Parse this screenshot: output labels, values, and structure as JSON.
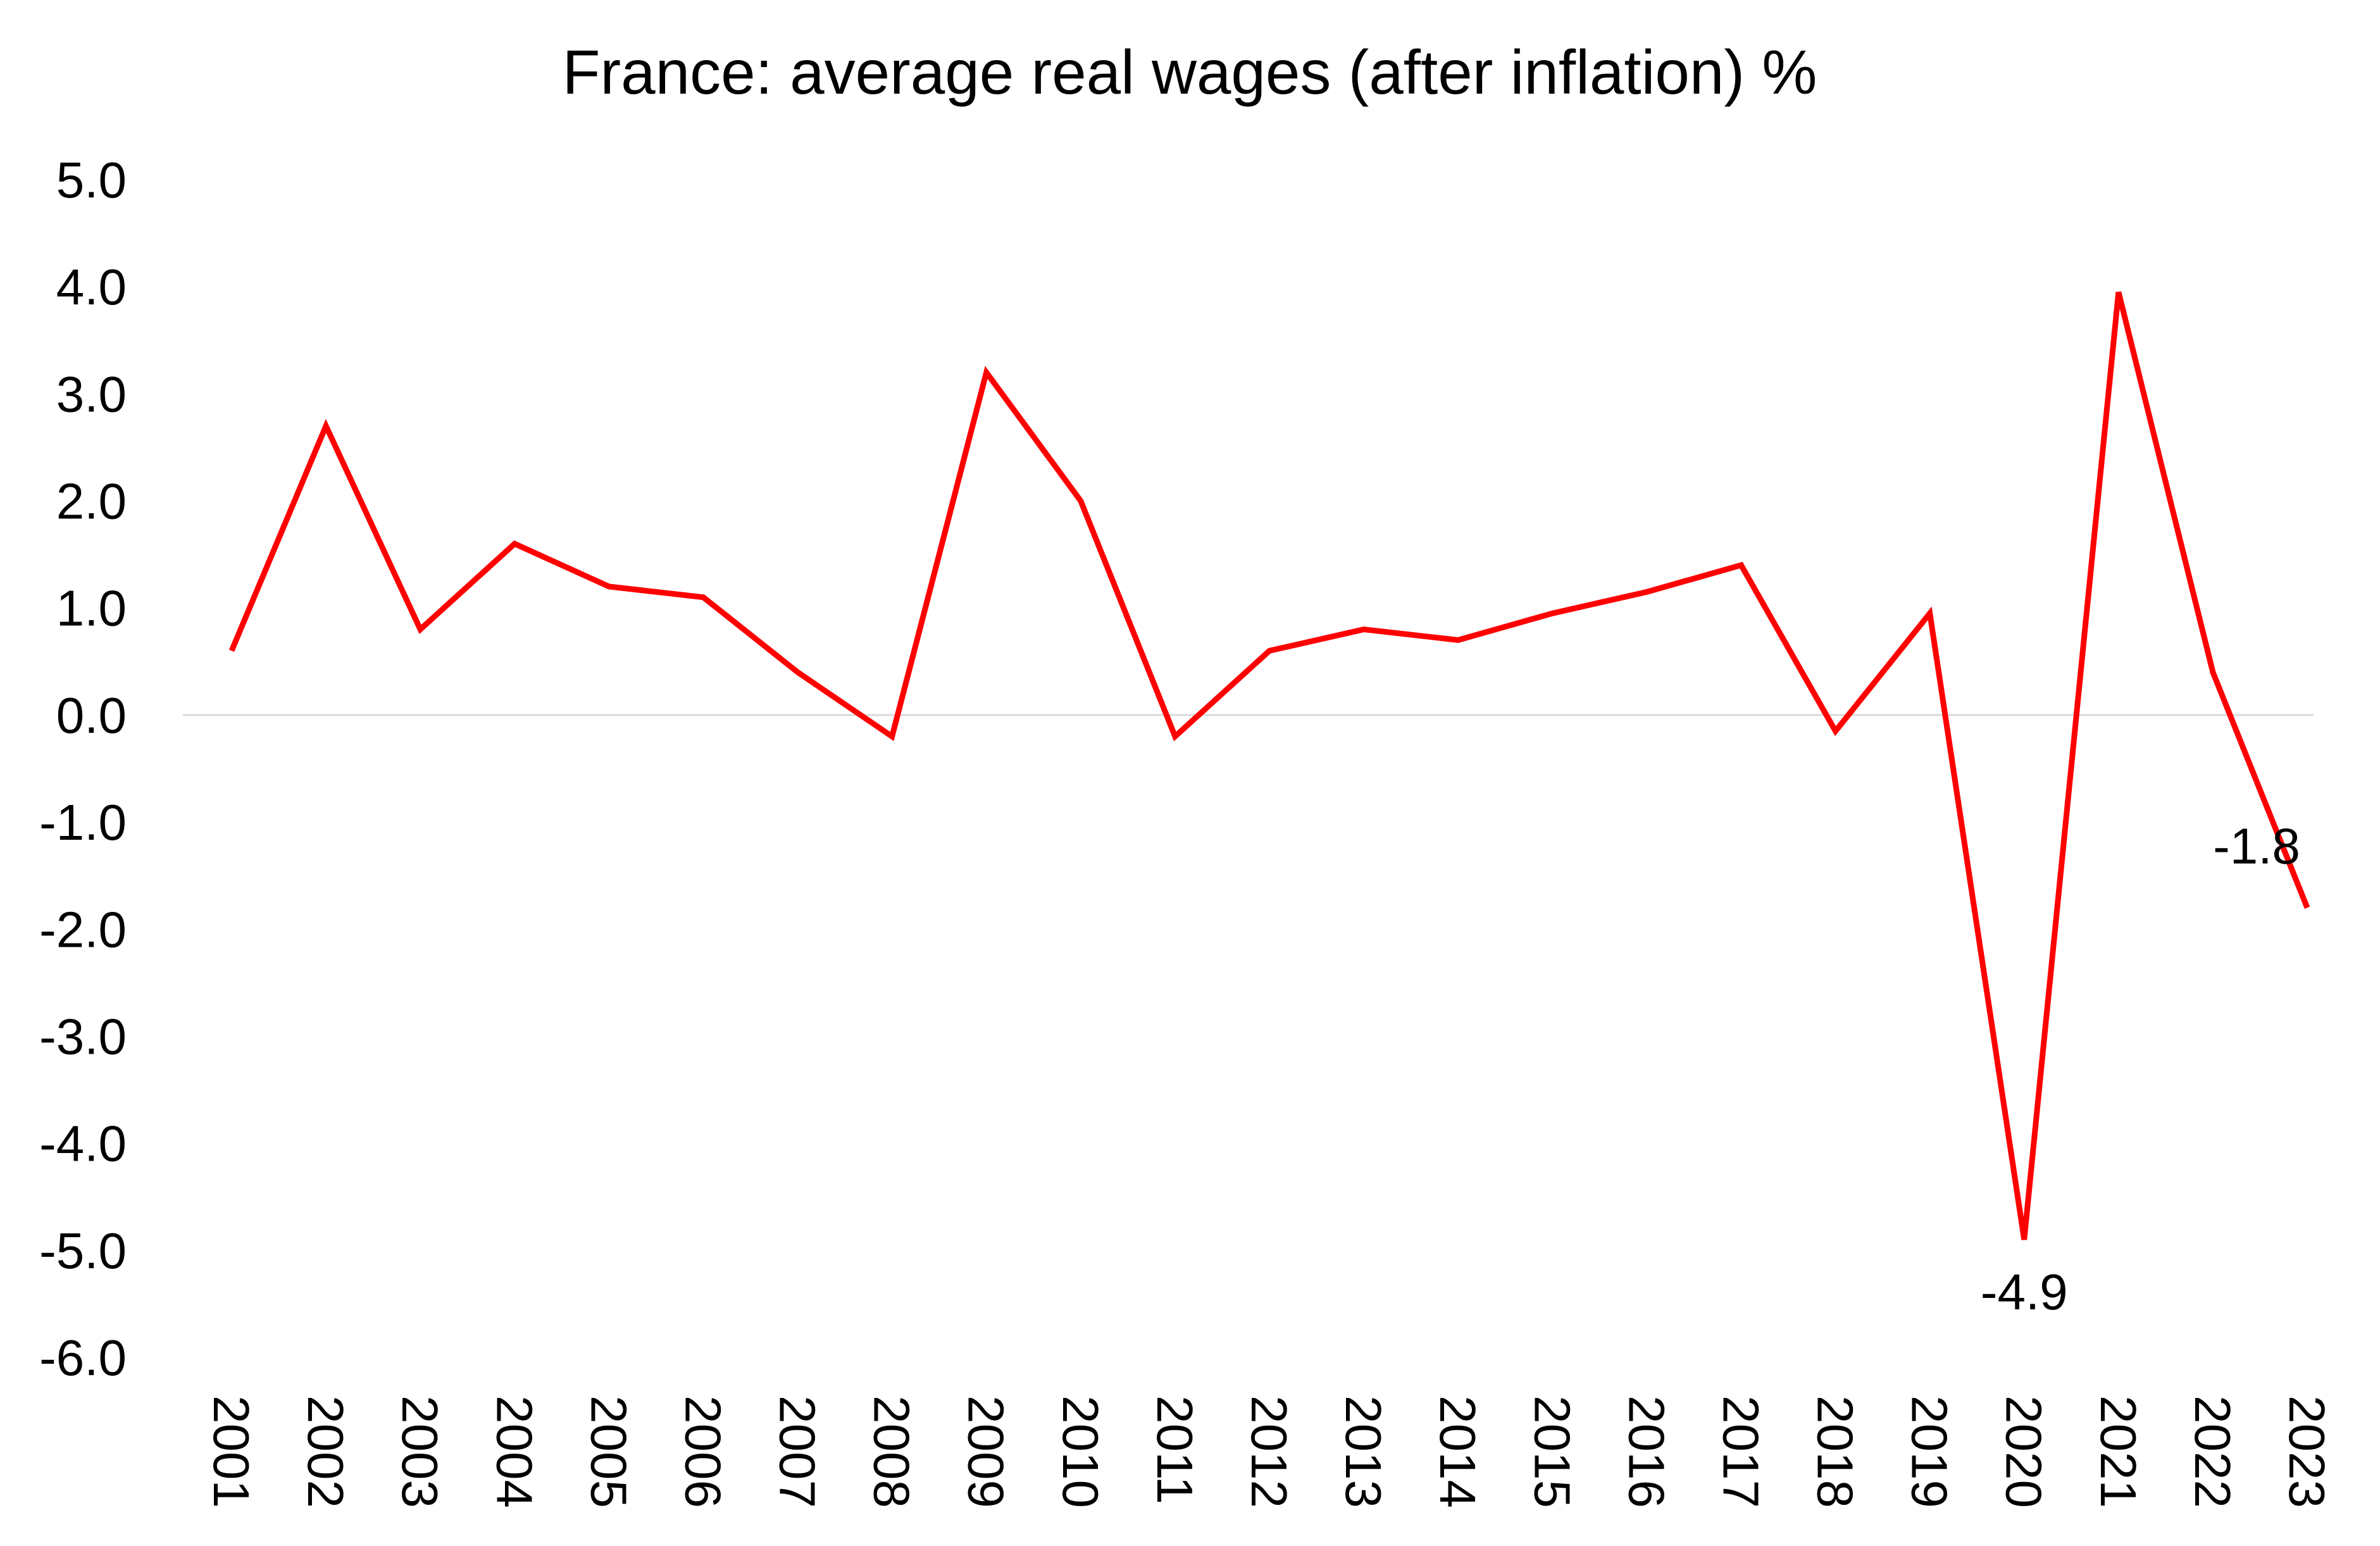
{
  "chart_data": {
    "type": "line",
    "title": "France: average real wages (after inflation) %",
    "xlabel": "",
    "ylabel": "",
    "categories": [
      "2001",
      "2002",
      "2003",
      "2004",
      "2005",
      "2006",
      "2007",
      "2008",
      "2009",
      "2010",
      "2011",
      "2012",
      "2013",
      "2014",
      "2015",
      "2016",
      "2017",
      "2018",
      "2019",
      "2020",
      "2021",
      "2022",
      "2023"
    ],
    "series": [
      {
        "values": [
          0.6,
          2.7,
          0.8,
          1.6,
          1.2,
          1.1,
          0.4,
          -0.2,
          3.2,
          2.0,
          -0.2,
          0.6,
          0.8,
          0.7,
          0.95,
          1.15,
          1.4,
          -0.15,
          0.95,
          -4.9,
          3.95,
          0.4,
          -1.8
        ],
        "color": "#ff0000"
      }
    ],
    "data_labels": [
      {
        "category": "2020",
        "text": "-4.9"
      },
      {
        "category": "2023",
        "text": "-1.8"
      }
    ],
    "ylim": [
      -6,
      5
    ],
    "yticks": [
      "5.0",
      "4.0",
      "3.0",
      "2.0",
      "1.0",
      "0.0",
      "-1.0",
      "-2.0",
      "-3.0",
      "-4.0",
      "-5.0",
      "-6.0"
    ],
    "grid": false,
    "zero_line": true,
    "legend": "none"
  }
}
